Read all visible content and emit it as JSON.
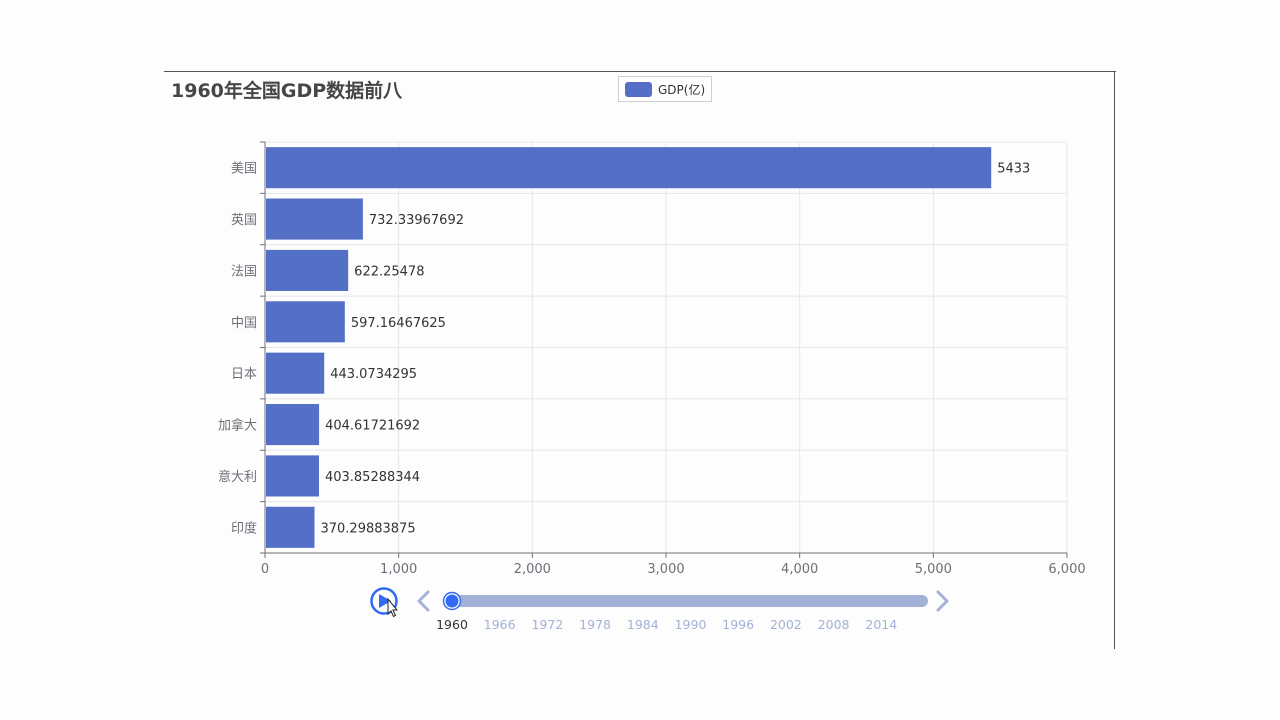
{
  "chart_data": {
    "type": "bar",
    "orientation": "horizontal",
    "title": "1960年全国GDP数据前八",
    "legend": {
      "label": "GDP(亿)",
      "position": "top-center"
    },
    "categories": [
      "美国",
      "英国",
      "法国",
      "中国",
      "日本",
      "加拿大",
      "意大利",
      "印度"
    ],
    "series": [
      {
        "name": "GDP(亿)",
        "values": [
          5433,
          732.33967692,
          622.25478,
          597.16467625,
          443.0734295,
          404.61721692,
          403.85288344,
          370.29883875
        ],
        "labels": [
          "5433",
          "732.33967692",
          "622.25478",
          "597.16467625",
          "443.0734295",
          "404.61721692",
          "403.85288344",
          "370.29883875"
        ]
      }
    ],
    "xlim": [
      0,
      6000
    ],
    "x_ticks": [
      "0",
      "1,000",
      "2,000",
      "3,000",
      "4,000",
      "5,000",
      "6,000"
    ],
    "grid": true,
    "colors": {
      "bar": "#5470c6",
      "grid": "#e6e6e6",
      "axis": "#6e7079"
    }
  },
  "timeline": {
    "current": "1960",
    "labels": [
      "1960",
      "1966",
      "1972",
      "1978",
      "1984",
      "1990",
      "1996",
      "2002",
      "2008",
      "2014"
    ],
    "colors": {
      "track": "#a4b1d7",
      "active": "#316bf3",
      "label": "#a4b1d7",
      "active_label": "#333333"
    }
  }
}
